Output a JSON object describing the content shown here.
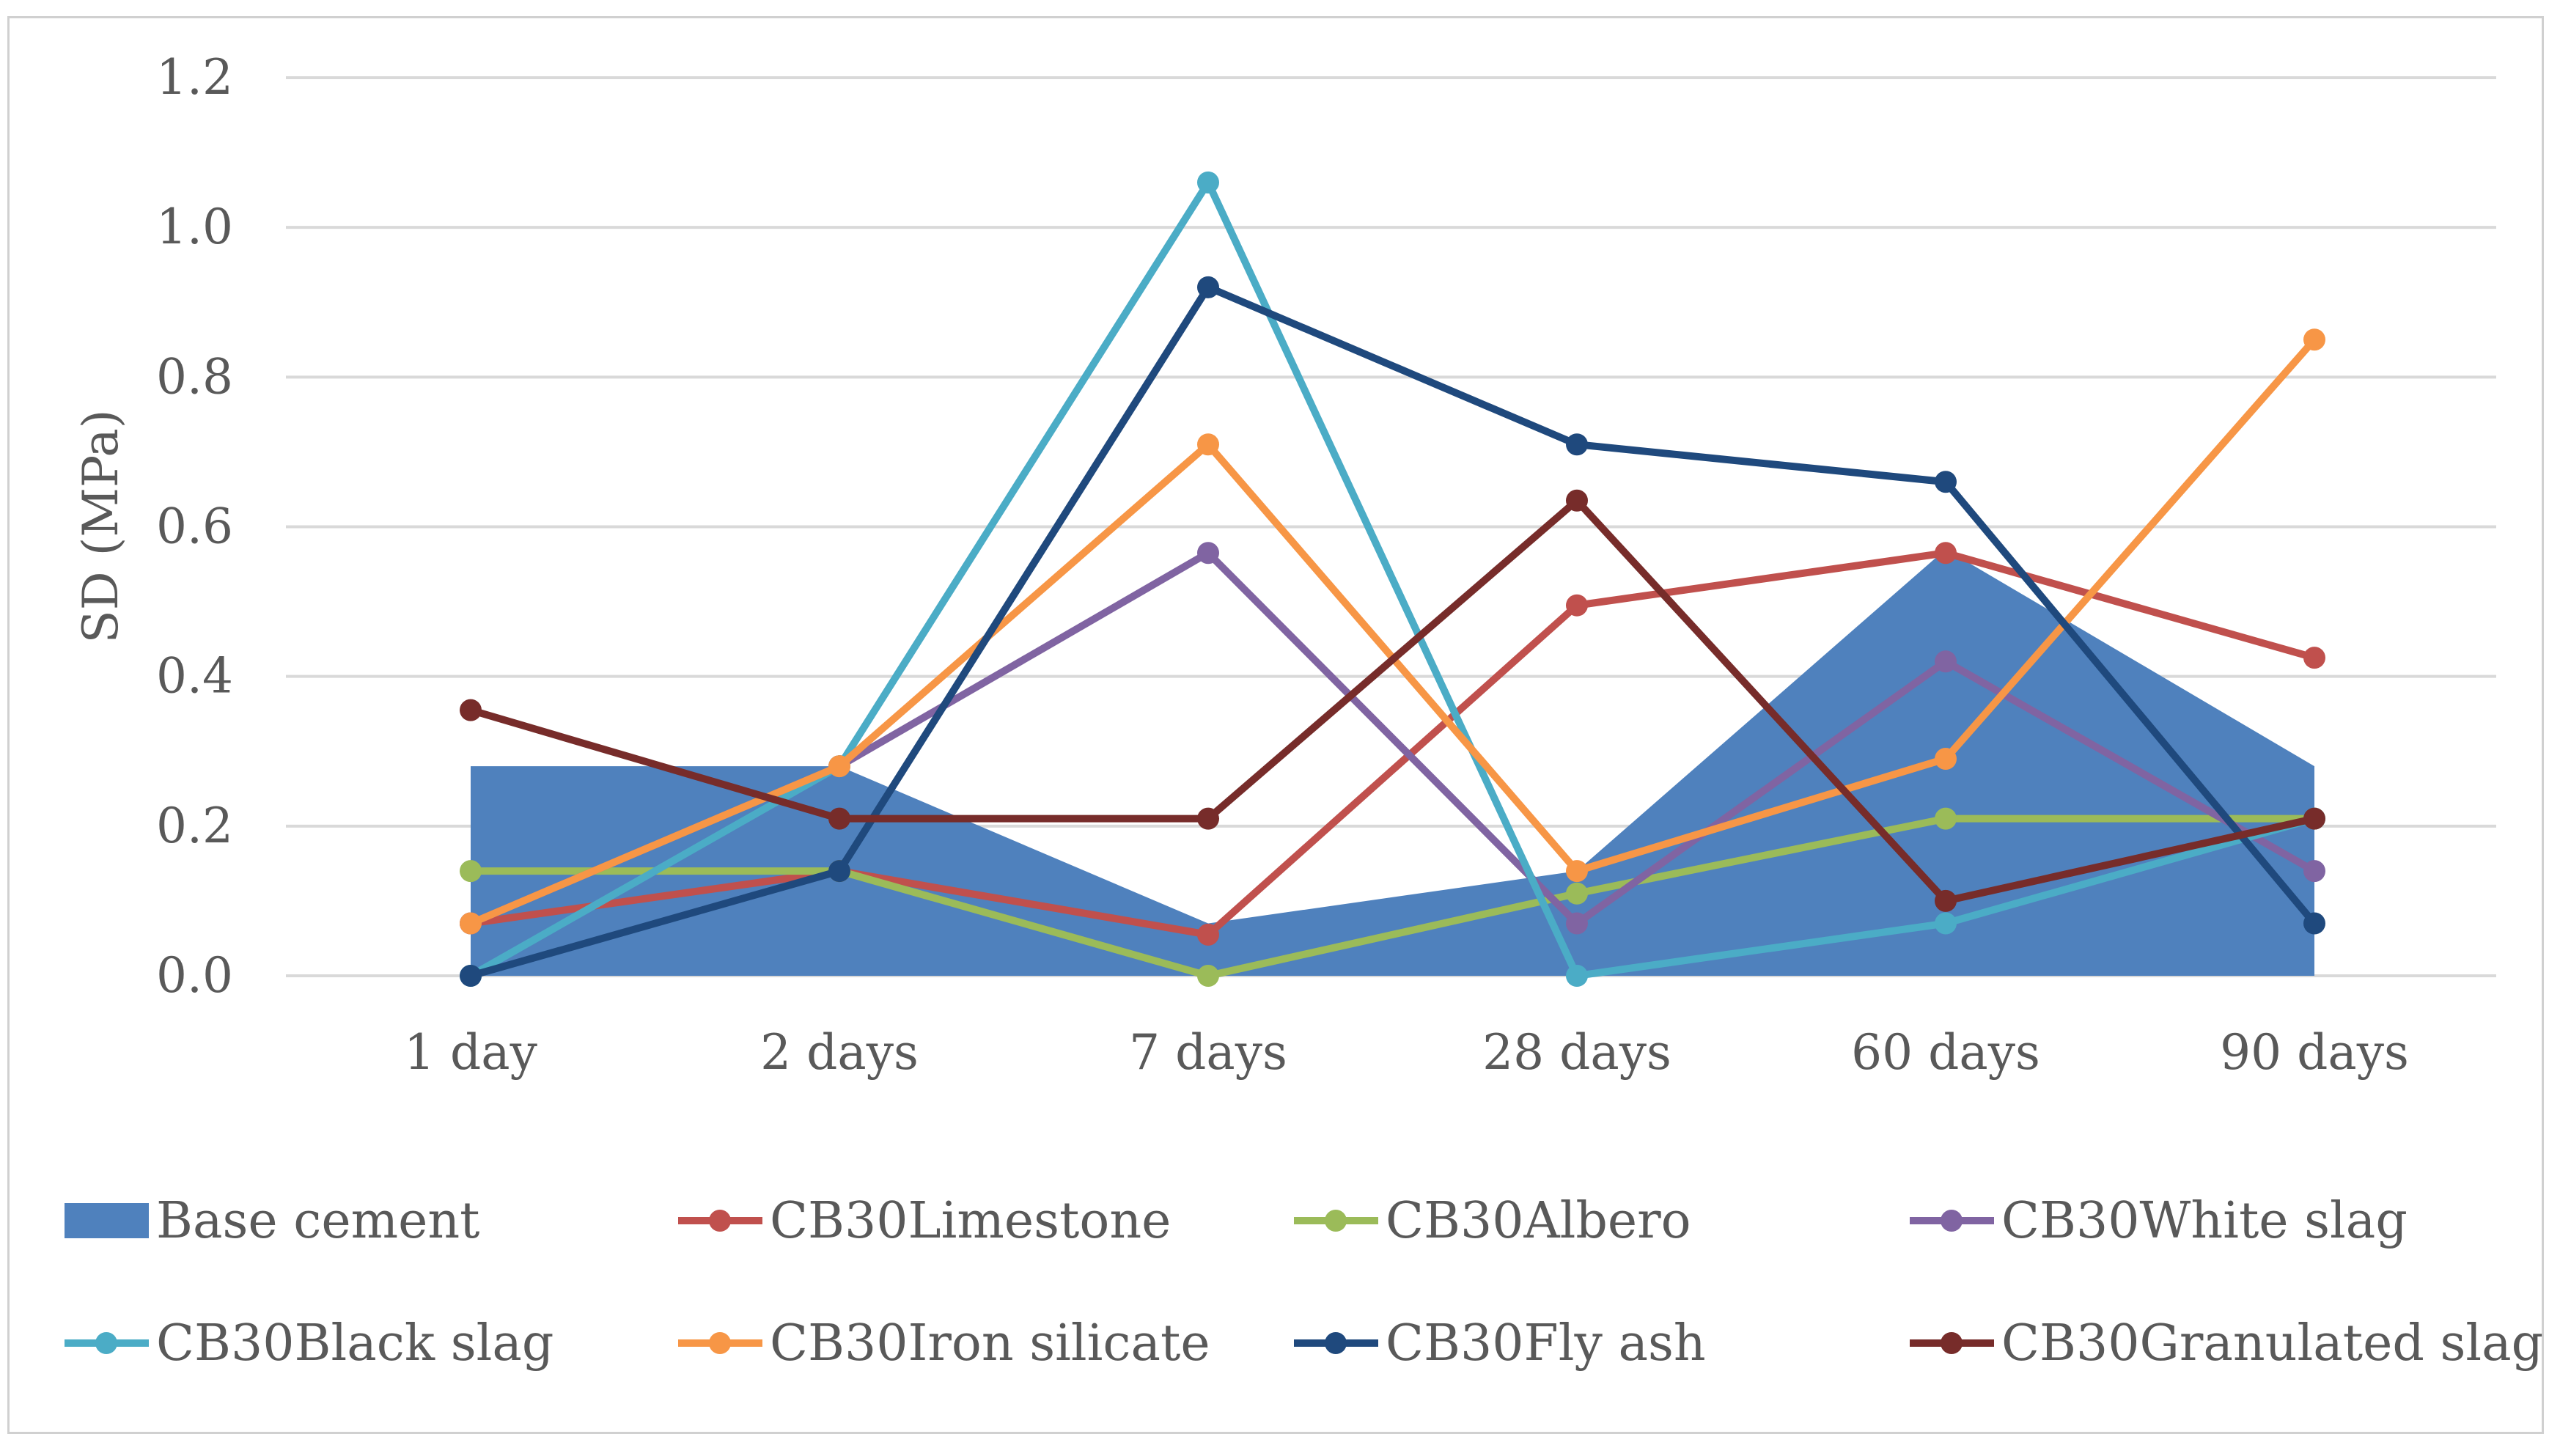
{
  "chart_data": {
    "type": "line",
    "title": "",
    "xlabel": "",
    "ylabel": "SD (MPa)",
    "ylim": [
      0,
      1.2
    ],
    "yticks": [
      "0.0",
      "0.2",
      "0.4",
      "0.6",
      "0.8",
      "1.0",
      "1.2"
    ],
    "categories": [
      "1 day",
      "2 days",
      "7 days",
      "28 days",
      "60 days",
      "90 days"
    ],
    "grid": true,
    "legend_position": "bottom",
    "area_series": {
      "name": "Base cement",
      "color": "#4f81bd",
      "values": [
        0.28,
        0.28,
        0.07,
        0.14,
        0.57,
        0.28
      ]
    },
    "series": [
      {
        "name": "CB30Limestone",
        "color": "#c0504d",
        "values": [
          0.07,
          0.14,
          0.055,
          0.495,
          0.565,
          0.425
        ]
      },
      {
        "name": "CB30Albero",
        "color": "#9bbb59",
        "values": [
          0.14,
          0.14,
          0.0,
          0.11,
          0.21,
          0.21
        ]
      },
      {
        "name": "CB30White slag",
        "color": "#8064a2",
        "values": [
          0.07,
          0.28,
          0.565,
          0.07,
          0.42,
          0.14
        ]
      },
      {
        "name": "CB30Black slag",
        "color": "#4bacc6",
        "values": [
          0.0,
          0.28,
          1.06,
          0.0,
          0.07,
          0.21
        ]
      },
      {
        "name": "CB30Iron silicate",
        "color": "#f79646",
        "values": [
          0.07,
          0.28,
          0.71,
          0.14,
          0.29,
          0.85
        ]
      },
      {
        "name": "CB30Fly ash",
        "color": "#1f497d",
        "values": [
          0.0,
          0.14,
          0.92,
          0.71,
          0.66,
          0.07
        ]
      },
      {
        "name": "CB30Granulated slag",
        "color": "#772c2a",
        "values": [
          0.355,
          0.21,
          0.21,
          0.635,
          0.1,
          0.21
        ]
      }
    ]
  }
}
